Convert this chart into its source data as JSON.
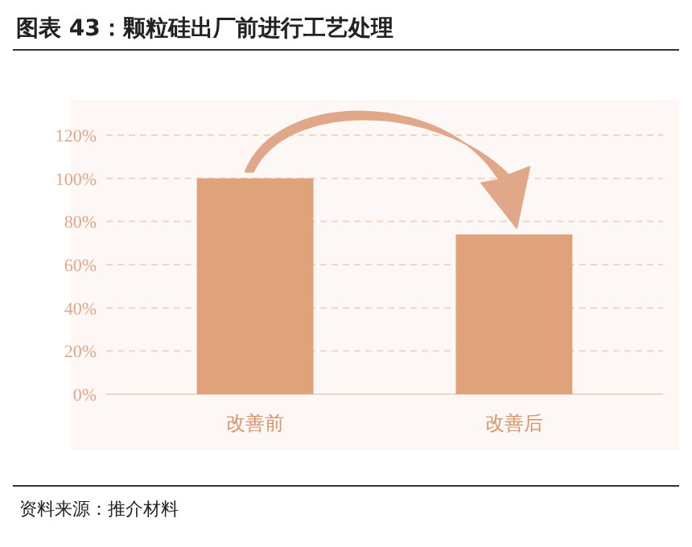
{
  "chart_data": {
    "type": "bar",
    "title": "图表 43：颗粒硅出厂前进行工艺处理",
    "categories": [
      "改善前",
      "改善后"
    ],
    "values": [
      100,
      74
    ],
    "color": "#dfa27a",
    "ylim": [
      0,
      120
    ],
    "yticks": [
      {
        "value": 0,
        "label": "0%"
      },
      {
        "value": 20,
        "label": "20%"
      },
      {
        "value": 40,
        "label": "40%"
      },
      {
        "value": 60,
        "label": "60%"
      },
      {
        "value": 80,
        "label": "80%"
      },
      {
        "value": 100,
        "label": "100%"
      },
      {
        "value": 120,
        "label": "120%"
      }
    ],
    "grid": "y",
    "annotations": [
      "资料来源：推介材料"
    ]
  }
}
